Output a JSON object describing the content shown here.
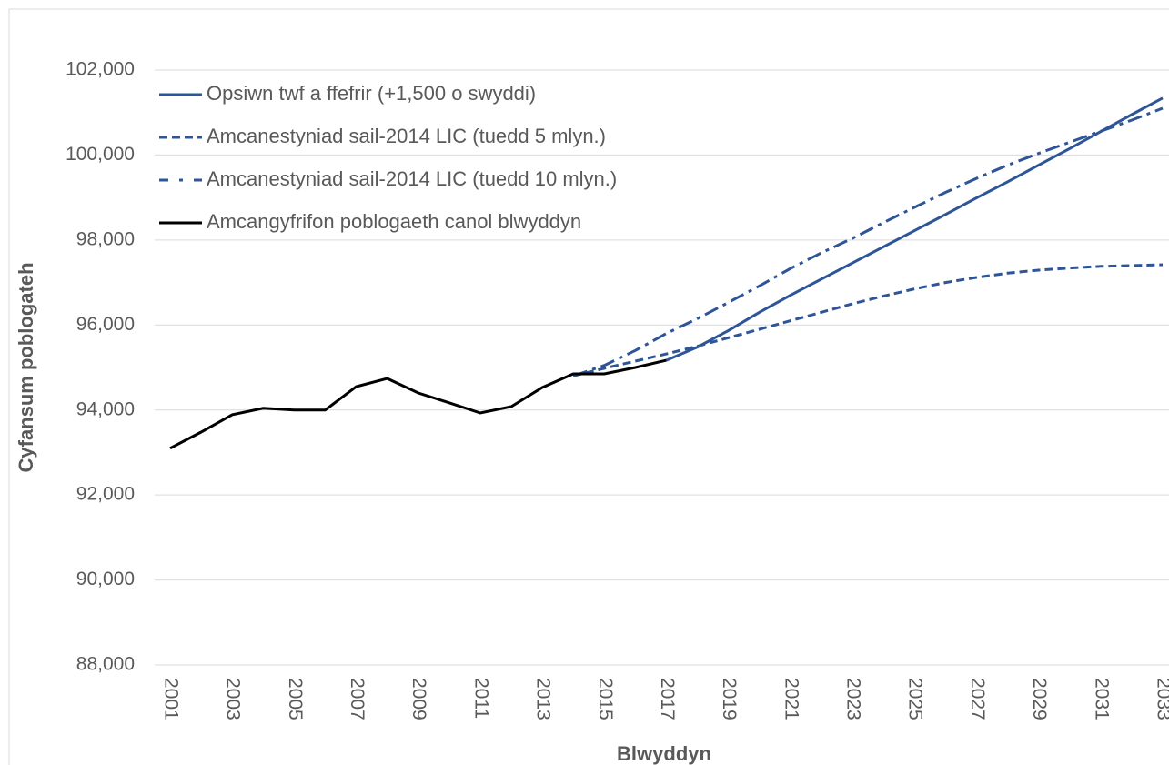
{
  "chart_data": {
    "type": "line",
    "y_label": "Cyfansum poblogateh",
    "x_label": "Blwyddyn",
    "x": [
      2001,
      2002,
      2003,
      2004,
      2005,
      2006,
      2007,
      2008,
      2009,
      2010,
      2011,
      2012,
      2013,
      2014,
      2015,
      2016,
      2017,
      2018,
      2019,
      2020,
      2021,
      2022,
      2023,
      2024,
      2025,
      2026,
      2027,
      2028,
      2029,
      2030,
      2031,
      2032,
      2033
    ],
    "xlim": [
      2001,
      2033
    ],
    "xticks": [
      2001,
      2003,
      2005,
      2007,
      2009,
      2011,
      2013,
      2015,
      2017,
      2019,
      2021,
      2023,
      2025,
      2027,
      2029,
      2031,
      2033
    ],
    "ylim": [
      88000,
      102000
    ],
    "yticks": [
      {
        "value": 88000,
        "label": "88,000"
      },
      {
        "value": 90000,
        "label": "90,000"
      },
      {
        "value": 92000,
        "label": "92,000"
      },
      {
        "value": 94000,
        "label": "94,000"
      },
      {
        "value": 96000,
        "label": "96,000"
      },
      {
        "value": 98000,
        "label": "98,000"
      },
      {
        "value": 100000,
        "label": "100,000"
      },
      {
        "value": 102000,
        "label": "102,000"
      }
    ],
    "grid": true,
    "legend": "top-left",
    "series": [
      {
        "name": "Opsiwn twf a ffefrir (+1,500 o swyddi)",
        "color": "#2e5597",
        "dash": "solid",
        "values": [
          null,
          null,
          null,
          null,
          null,
          null,
          null,
          null,
          null,
          null,
          null,
          null,
          null,
          null,
          null,
          null,
          95170,
          95480,
          95870,
          96300,
          96700,
          97080,
          97460,
          97840,
          98220,
          98600,
          98990,
          99370,
          99760,
          100150,
          100550,
          100950,
          101340
        ]
      },
      {
        "name": "Amcanestyniad sail-2014 LIC (tuedd 5 mlyn.)",
        "color": "#2e5597",
        "dash": "dashed",
        "values": [
          null,
          null,
          null,
          null,
          null,
          null,
          null,
          null,
          null,
          null,
          null,
          null,
          null,
          94800,
          94980,
          95150,
          95320,
          95500,
          95700,
          95900,
          96100,
          96300,
          96500,
          96680,
          96850,
          97000,
          97120,
          97220,
          97290,
          97340,
          97380,
          97400,
          97420
        ]
      },
      {
        "name": "Amcanestyniad sail-2014 LIC (tuedd 10 mlyn.)",
        "color": "#2e5597",
        "dash": "dashdot",
        "values": [
          null,
          null,
          null,
          null,
          null,
          null,
          null,
          null,
          null,
          null,
          null,
          null,
          null,
          94800,
          95050,
          95400,
          95800,
          96150,
          96530,
          96920,
          97330,
          97700,
          98040,
          98410,
          98770,
          99120,
          99450,
          99760,
          100040,
          100300,
          100560,
          100820,
          101100
        ]
      },
      {
        "name": "Amcangyfrifon poblogaeth canol blwyddyn",
        "color": "#000000",
        "dash": "solid",
        "values": [
          93100,
          93480,
          93890,
          94040,
          94000,
          94000,
          94550,
          94740,
          94400,
          94170,
          93930,
          94080,
          94530,
          94850,
          94850,
          95000,
          95170,
          null,
          null,
          null,
          null,
          null,
          null,
          null,
          null,
          null,
          null,
          null,
          null,
          null,
          null,
          null,
          null
        ]
      }
    ]
  }
}
